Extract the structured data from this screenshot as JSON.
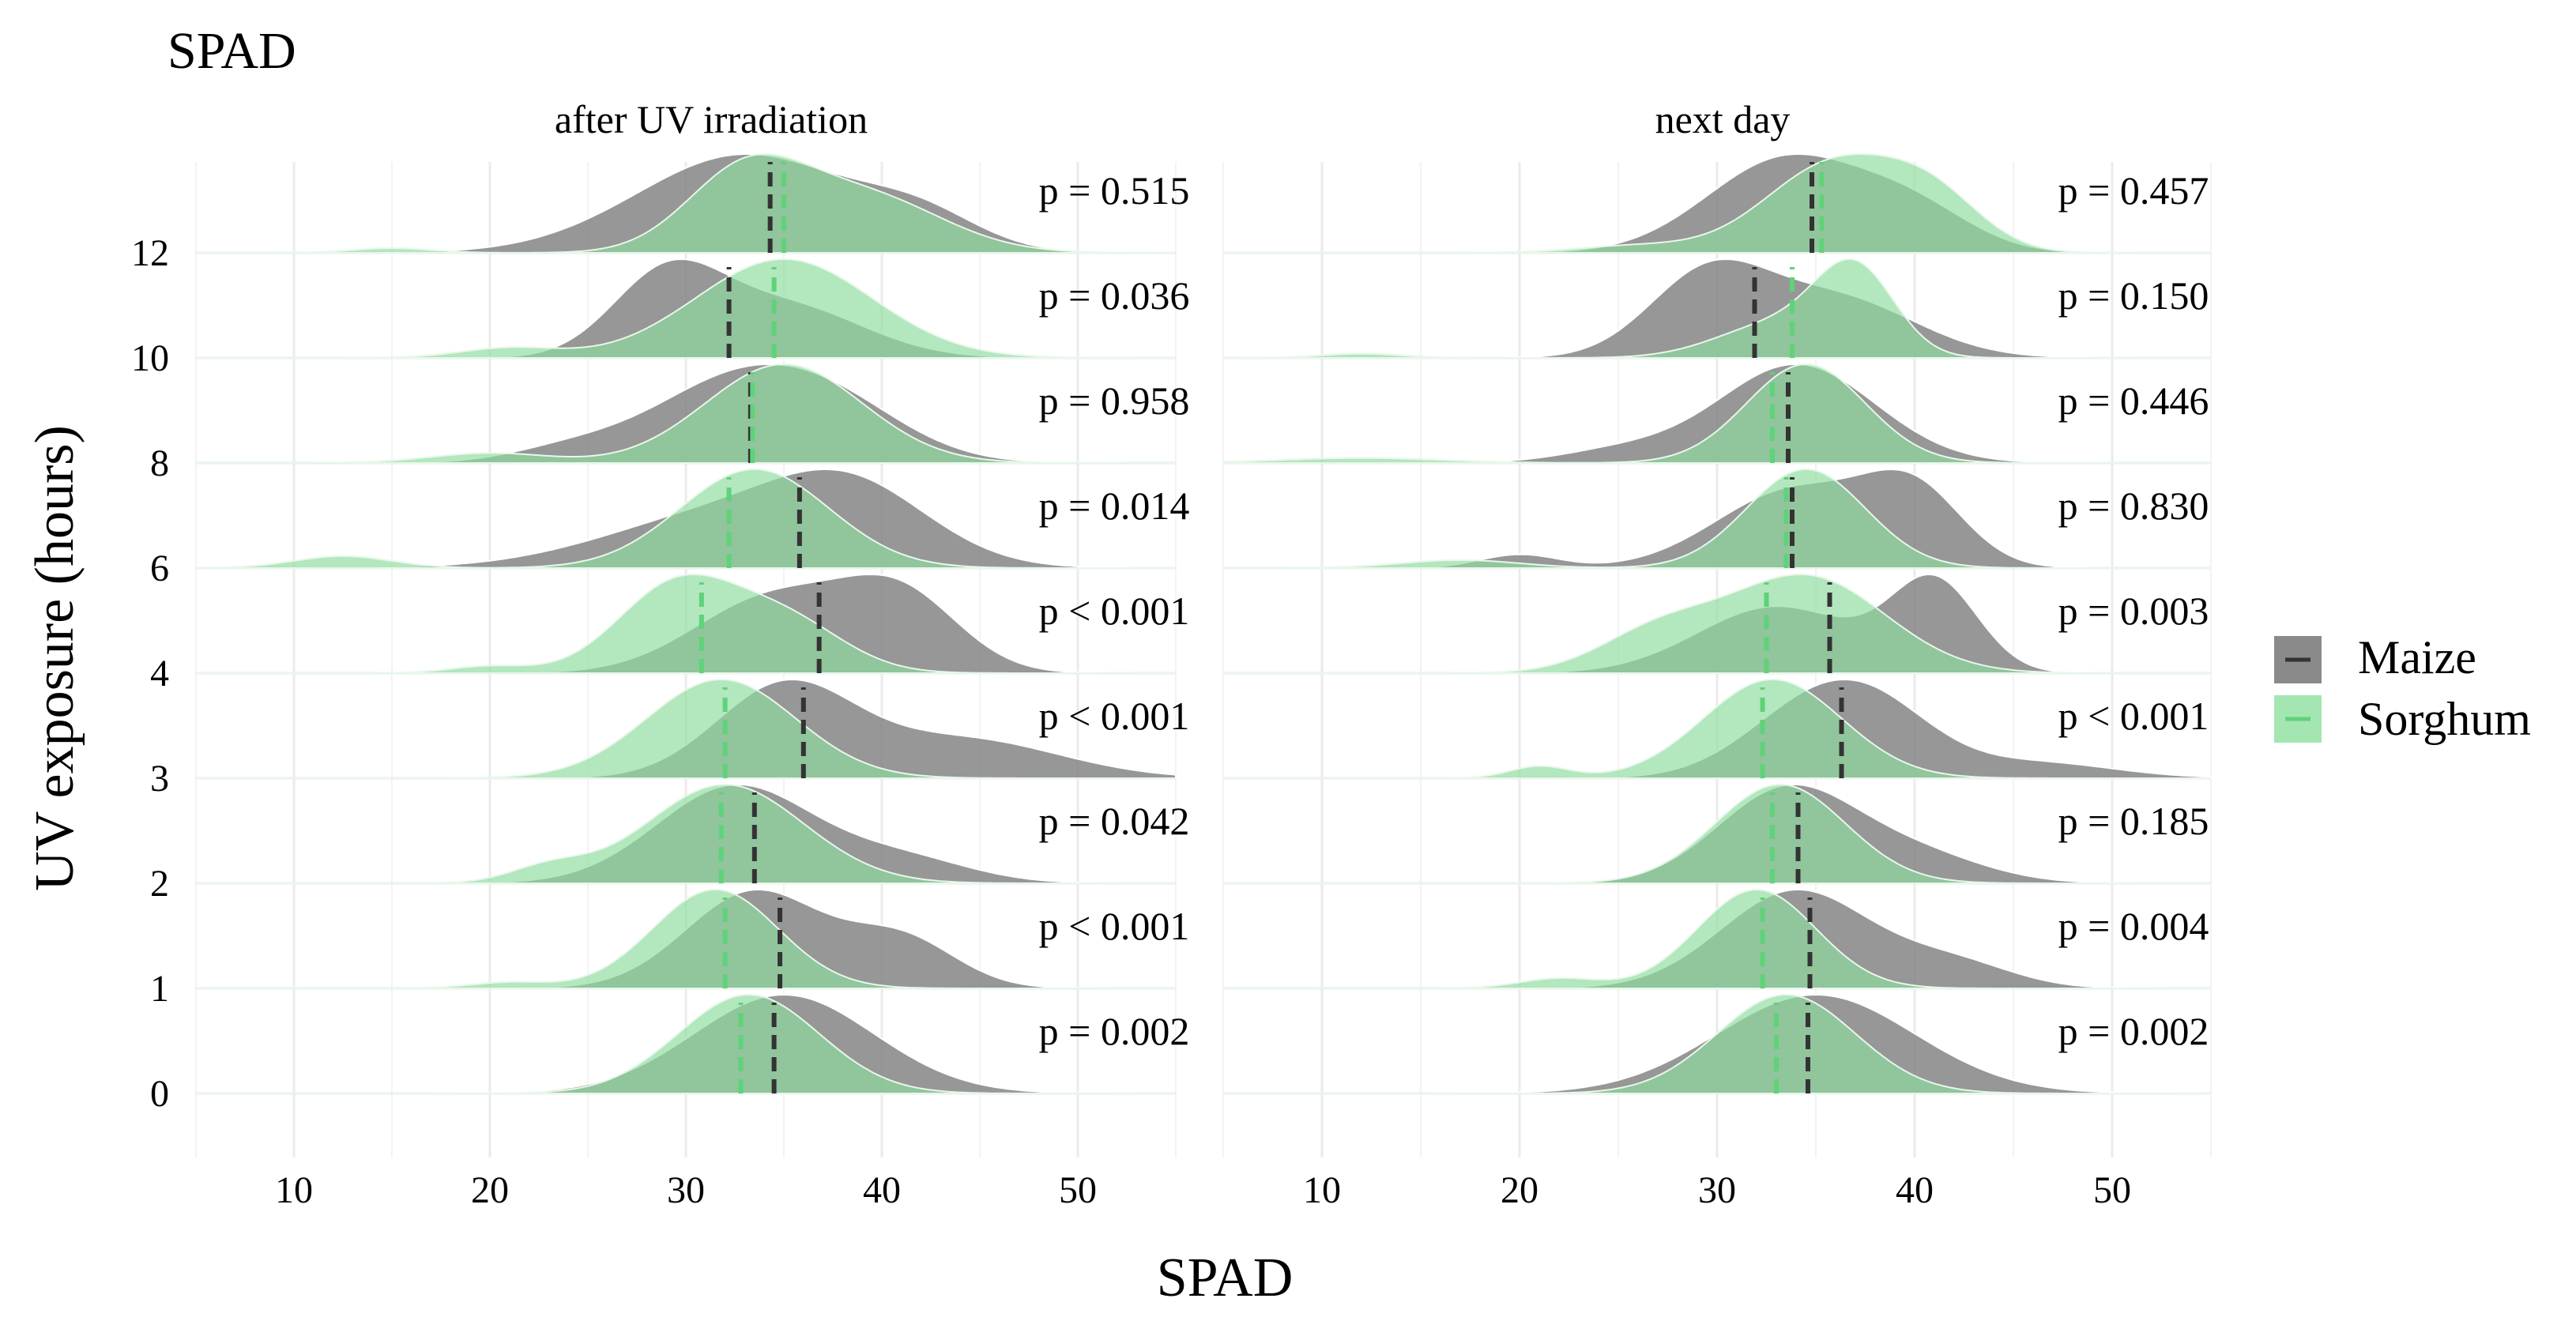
{
  "chart_data": {
    "type": "ridgeline-density",
    "title": "SPAD",
    "xlabel": "SPAD",
    "ylabel": "UV exposure (hours)",
    "xlim": [
      5,
      55
    ],
    "x_ticks": [
      10,
      20,
      30,
      40,
      50
    ],
    "y_levels": [
      "0",
      "1",
      "2",
      "3",
      "4",
      "6",
      "8",
      "10",
      "12"
    ],
    "legend": [
      {
        "name": "Maize",
        "color": "#7f7f7f"
      },
      {
        "name": "Sorghum",
        "color": "#90e0a0"
      }
    ],
    "colors": {
      "maize": "#808080",
      "sorghum": "#8fdc9f",
      "overlap": "#7fae84",
      "maize_median": "#333333",
      "sorghum_median": "#5fd27a"
    },
    "facets": [
      {
        "label": "after UV irradiation",
        "ridges": [
          {
            "level": "0",
            "p": "p = 0.002",
            "maize": {
              "mean": 34.5,
              "sd": 4.6,
              "median": 34.5,
              "components": [
                [
                  1,
                  35,
                  4.6
                ]
              ]
            },
            "sorghum": {
              "median": 32.8,
              "components": [
                [
                  1,
                  33.2,
                  3.6
                ]
              ]
            }
          },
          {
            "level": "1",
            "p": "p < 0.001",
            "maize": {
              "median": 34.8,
              "components": [
                [
                  0.7,
                  33.5,
                  3.5
                ],
                [
                  0.35,
                  41,
                  2.8
                ]
              ]
            },
            "sorghum": {
              "median": 32.0,
              "components": [
                [
                  1,
                  31.5,
                  3.2
                ],
                [
                  0.06,
                  21,
                  2
                ]
              ]
            }
          },
          {
            "level": "2",
            "p": "p = 0.042",
            "maize": {
              "median": 33.5,
              "components": [
                [
                  1,
                  32.5,
                  4
                ],
                [
                  0.25,
                  41,
                  3.5
                ]
              ]
            },
            "sorghum": {
              "median": 31.8,
              "components": [
                [
                  1,
                  32,
                  4
                ],
                [
                  0.15,
                  23,
                  2
                ]
              ]
            }
          },
          {
            "level": "3",
            "p": "p < 0.001",
            "maize": {
              "median": 36.0,
              "components": [
                [
                  0.8,
                  35,
                  3.5
                ],
                [
                  0.35,
                  44,
                  5
                ]
              ]
            },
            "sorghum": {
              "median": 32.0,
              "components": [
                [
                  1,
                  31.8,
                  3.8
                ]
              ]
            }
          },
          {
            "level": "4",
            "p": "p < 0.001",
            "maize": {
              "median": 36.8,
              "components": [
                [
                  0.85,
                  34.5,
                  4
                ],
                [
                  0.8,
                  41,
                  3
                ]
              ]
            },
            "sorghum": {
              "median": 30.8,
              "components": [
                [
                  1,
                  29.5,
                  3
                ],
                [
                  0.6,
                  35,
                  3
                ],
                [
                  0.08,
                  20,
                  2
                ]
              ]
            }
          },
          {
            "level": "6",
            "p": "p = 0.014",
            "maize": {
              "median": 35.8,
              "components": [
                [
                  0.5,
                  32,
                  6
                ],
                [
                  0.6,
                  38.5,
                  4
                ]
              ]
            },
            "sorghum": {
              "median": 32.2,
              "components": [
                [
                  1,
                  33.5,
                  3.8
                ],
                [
                  0.12,
                  12.5,
                  2.5
                ]
              ]
            }
          },
          {
            "level": "8",
            "p": "p = 0.958",
            "maize": {
              "median": 33.3,
              "components": [
                [
                  0.55,
                  31.5,
                  4
                ],
                [
                  0.55,
                  37,
                  4
                ],
                [
                  0.12,
                  24,
                  3
                ]
              ]
            },
            "sorghum": {
              "median": 33.4,
              "components": [
                [
                  1,
                  35,
                  4
                ],
                [
                  0.1,
                  20,
                  3
                ]
              ]
            }
          },
          {
            "level": "10",
            "p": "p = 0.036",
            "maize": {
              "median": 32.2,
              "components": [
                [
                  0.75,
                  29,
                  2.8
                ],
                [
                  0.5,
                  35,
                  4
                ]
              ]
            },
            "sorghum": {
              "median": 34.5,
              "components": [
                [
                  1,
                  35,
                  4.5
                ],
                [
                  0.1,
                  21,
                  2.5
                ]
              ]
            }
          },
          {
            "level": "12",
            "p": "p = 0.515",
            "maize": {
              "median": 34.3,
              "components": [
                [
                  1,
                  33,
                  5.5
                ],
                [
                  0.3,
                  42,
                  3
                ]
              ]
            },
            "sorghum": {
              "median": 35.0,
              "components": [
                [
                  1,
                  33,
                  3
                ],
                [
                  0.75,
                  39,
                  4
                ],
                [
                  0.06,
                  15,
                  2
                ]
              ]
            }
          }
        ]
      },
      {
        "label": "next day",
        "ridges": [
          {
            "level": "0",
            "p": "p = 0.002",
            "maize": {
              "median": 34.6,
              "components": [
                [
                  1,
                  35,
                  5
                ]
              ]
            },
            "sorghum": {
              "median": 33.0,
              "components": [
                [
                  1,
                  33.5,
                  3.5
                ]
              ]
            }
          },
          {
            "level": "1",
            "p": "p = 0.004",
            "maize": {
              "median": 34.7,
              "components": [
                [
                  1,
                  34,
                  3.8
                ],
                [
                  0.25,
                  42,
                  3
                ]
              ]
            },
            "sorghum": {
              "median": 32.3,
              "components": [
                [
                  1,
                  32,
                  3
                ],
                [
                  0.1,
                  22,
                  2
                ]
              ]
            }
          },
          {
            "level": "2",
            "p": "p = 0.185",
            "maize": {
              "median": 34.1,
              "components": [
                [
                  1,
                  33.5,
                  3.5
                ],
                [
                  0.3,
                  40,
                  3.5
                ]
              ]
            },
            "sorghum": {
              "median": 32.8,
              "components": [
                [
                  1,
                  33.2,
                  3.3
                ]
              ]
            }
          },
          {
            "level": "3",
            "p": "p < 0.001",
            "maize": {
              "median": 36.3,
              "components": [
                [
                  0.9,
                  35,
                  3.5
                ],
                [
                  0.5,
                  38.5,
                  3
                ],
                [
                  0.2,
                  46,
                  4
                ]
              ]
            },
            "sorghum": {
              "median": 32.3,
              "components": [
                [
                  1,
                  32.8,
                  3.5
                ],
                [
                  0.12,
                  21,
                  1.5
                ]
              ]
            }
          },
          {
            "level": "4",
            "p": "p = 0.003",
            "maize": {
              "median": 35.7,
              "components": [
                [
                  0.6,
                  33,
                  4
                ],
                [
                  0.8,
                  41,
                  2.2
                ]
              ]
            },
            "sorghum": {
              "median": 32.5,
              "components": [
                [
                  1,
                  34.5,
                  4
                ],
                [
                  0.4,
                  27,
                  3
                ]
              ]
            }
          },
          {
            "level": "6",
            "p": "p = 0.830",
            "maize": {
              "median": 33.8,
              "components": [
                [
                  0.7,
                  34,
                  4
                ],
                [
                  0.6,
                  40,
                  2.5
                ],
                [
                  0.12,
                  20,
                  2
                ]
              ]
            },
            "sorghum": {
              "median": 33.5,
              "components": [
                [
                  1,
                  34.5,
                  3
                ],
                [
                  0.08,
                  17,
                  3
                ]
              ]
            }
          },
          {
            "level": "8",
            "p": "p = 0.446",
            "maize": {
              "median": 33.6,
              "components": [
                [
                  1,
                  34,
                  4
                ],
                [
                  0.12,
                  25,
                  3
                ]
              ]
            },
            "sorghum": {
              "median": 32.8,
              "components": [
                [
                  1,
                  34.5,
                  3
                ],
                [
                  0.05,
                  12,
                  4
                ]
              ]
            }
          },
          {
            "level": "10",
            "p": "p = 0.150",
            "maize": {
              "median": 31.9,
              "components": [
                [
                  0.8,
                  29.5,
                  3
                ],
                [
                  0.6,
                  36,
                  4
                ]
              ]
            },
            "sorghum": {
              "median": 33.8,
              "components": [
                [
                  1,
                  37,
                  2
                ],
                [
                  0.4,
                  33,
                  3
                ],
                [
                  0.05,
                  12,
                  2
                ]
              ]
            }
          },
          {
            "level": "12",
            "p": "p = 0.457",
            "maize": {
              "median": 34.8,
              "components": [
                [
                  1,
                  33.5,
                  4
                ],
                [
                  0.4,
                  40,
                  3
                ]
              ]
            },
            "sorghum": {
              "median": 35.3,
              "components": [
                [
                  1,
                  36,
                  3.5
                ],
                [
                  0.5,
                  41,
                  2.5
                ],
                [
                  0.08,
                  26,
                  3
                ]
              ]
            }
          }
        ]
      }
    ]
  }
}
